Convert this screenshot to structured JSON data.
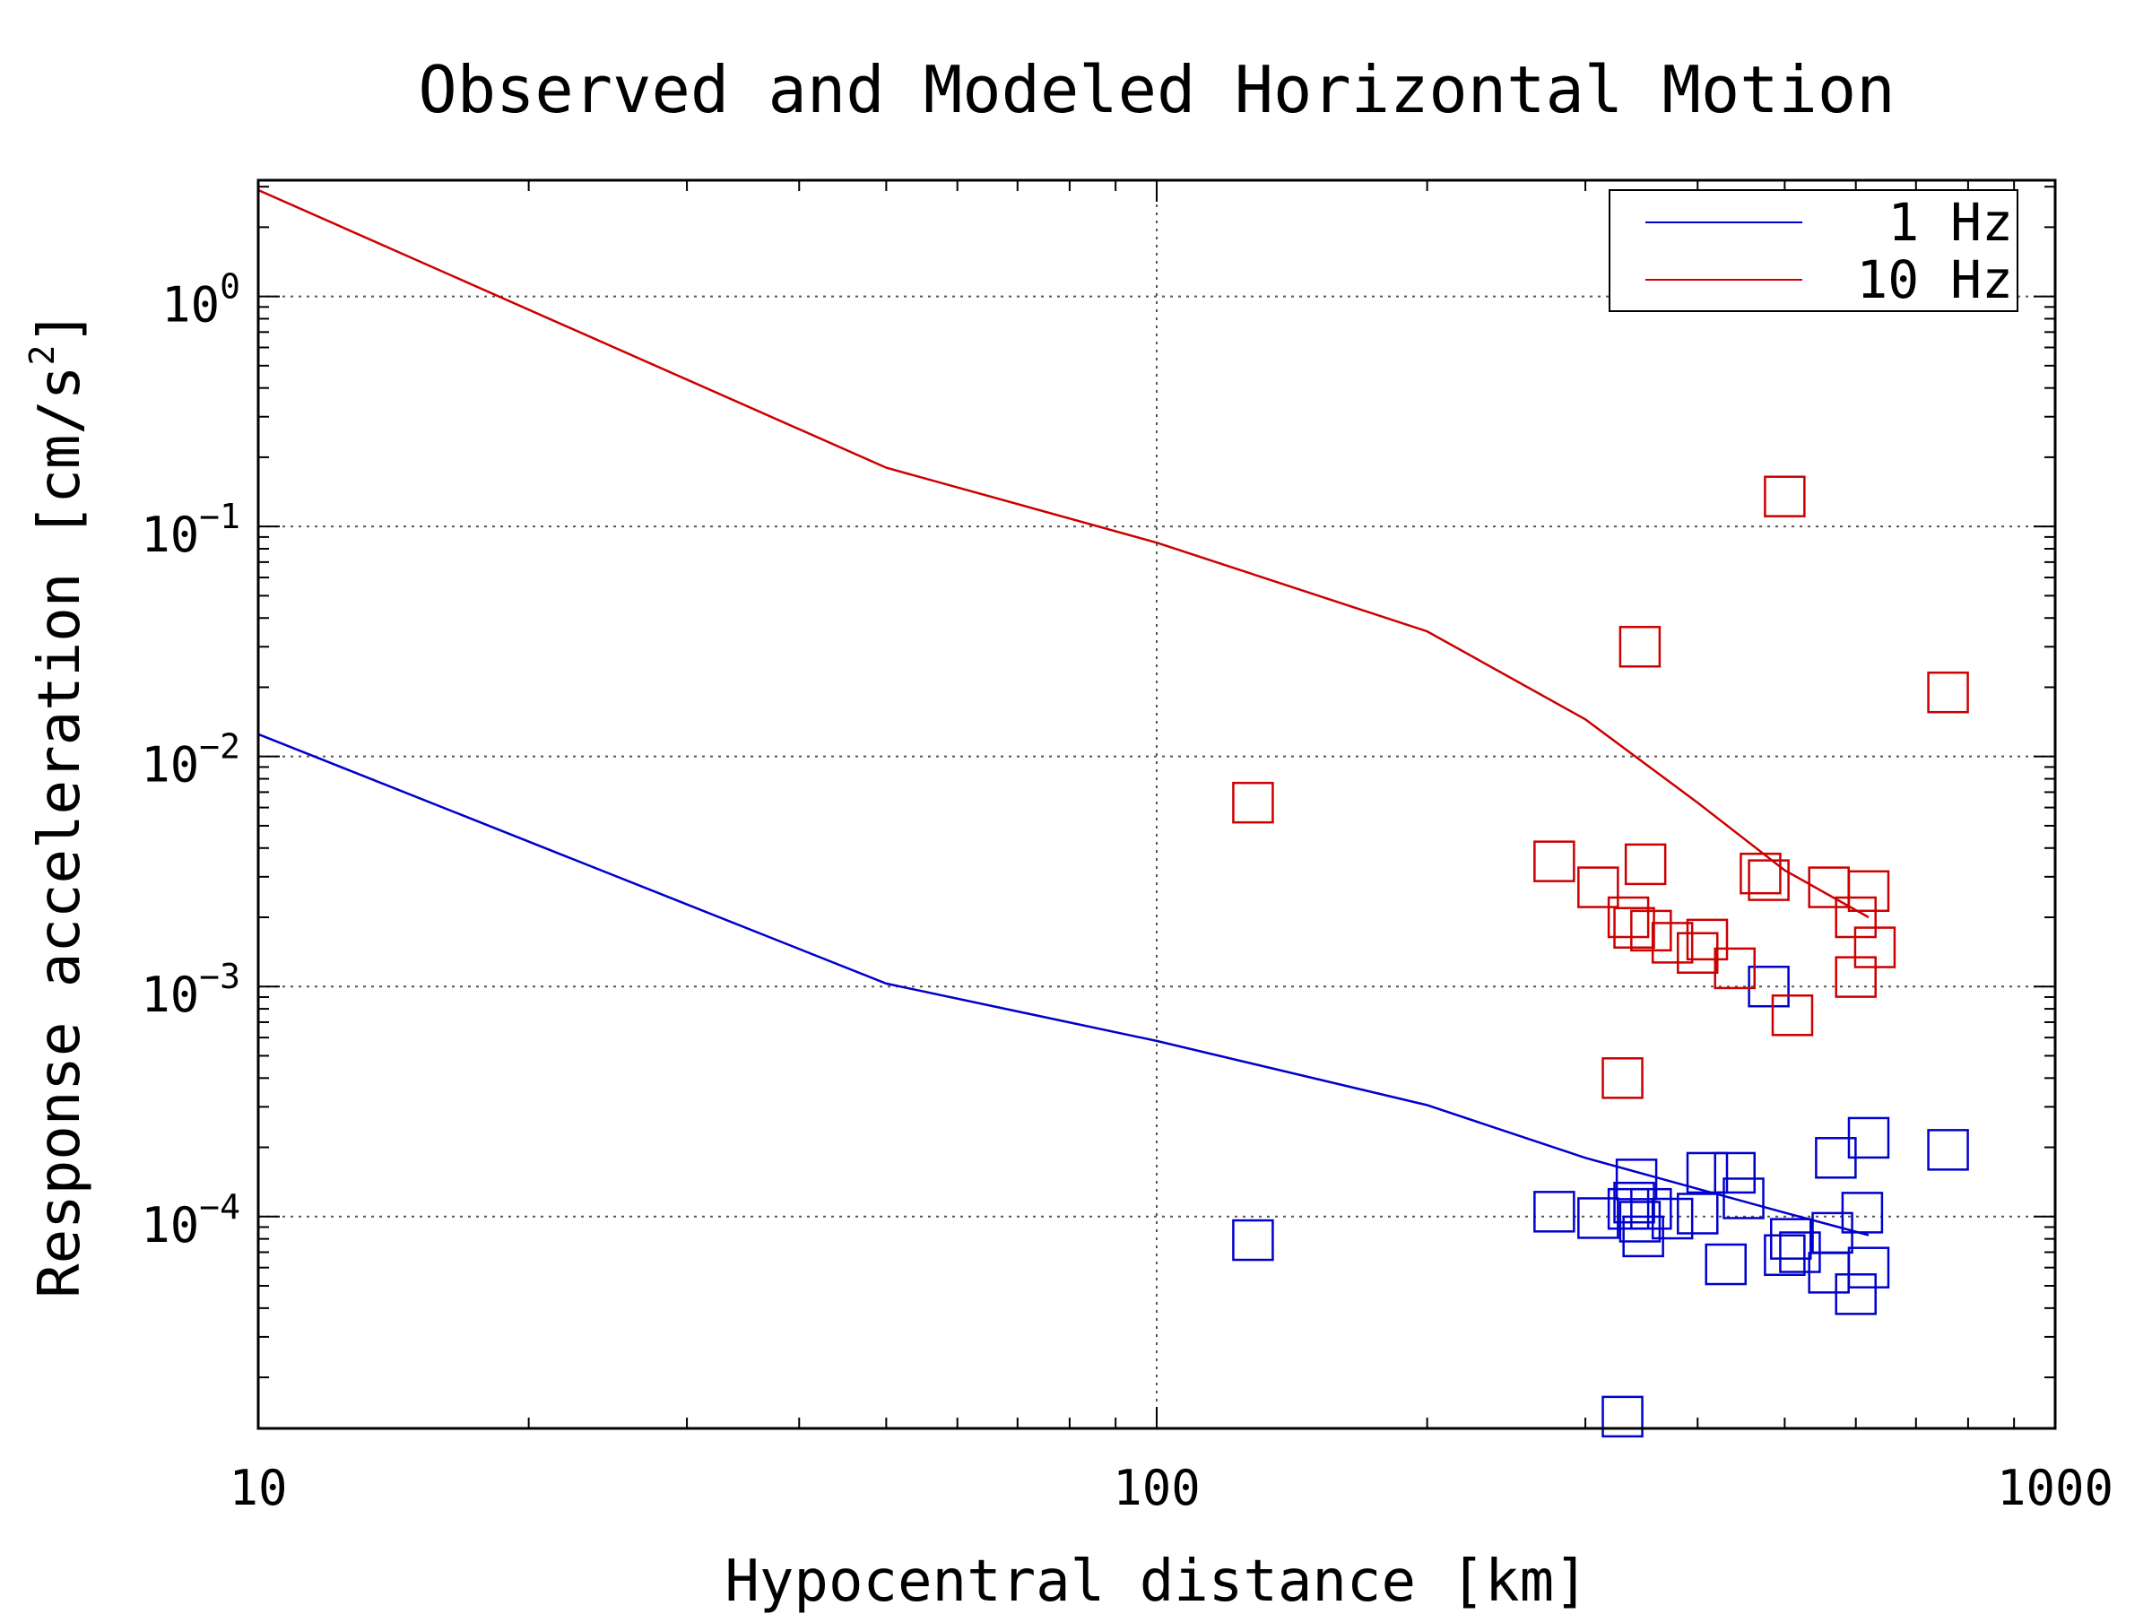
{
  "chart_data": {
    "type": "scatter",
    "title": "Observed and Modeled Horizontal Motion",
    "xlabel": "Hypocentral distance [km]",
    "ylabel": "Response acceleration [cm/s",
    "ylabel_sup": "2",
    "ylabel_end": "]",
    "x_scale": "log",
    "y_scale": "log",
    "xlim": [
      10,
      1000
    ],
    "ylim": [
      1.2e-05,
      3.2
    ],
    "grid": true,
    "legend_position": "top-right",
    "x_ticks": [
      {
        "value": 10,
        "label": "10"
      },
      {
        "value": 100,
        "label": "100"
      },
      {
        "value": 1000,
        "label": "1000"
      }
    ],
    "y_ticks": [
      {
        "value": 1,
        "base": "10",
        "exp": "0"
      },
      {
        "value": 0.1,
        "base": "10",
        "exp": "−1"
      },
      {
        "value": 0.01,
        "base": "10",
        "exp": "−2"
      },
      {
        "value": 0.001,
        "base": "10",
        "exp": "−3"
      },
      {
        "value": 0.0001,
        "base": "10",
        "exp": "−4"
      }
    ],
    "series": [
      {
        "name": "1 Hz",
        "color": "#0000cc",
        "line": {
          "x": [
            10,
            50,
            100,
            200,
            300,
            400,
            500,
            620
          ],
          "y": [
            0.0125,
            0.00103,
            0.00058,
            0.000305,
            0.00018,
            0.000132,
            0.000104,
            8.3e-05
          ]
        },
        "points": {
          "x": [
            128,
            277,
            310,
            330,
            335,
            340,
            342,
            345,
            348,
            355,
            375,
            400,
            410,
            430,
            440,
            450,
            480,
            500,
            508,
            520,
            560,
            565,
            570,
            600,
            610,
            620,
            620,
            760
          ],
          "y": [
            7.9e-05,
            0.000105,
            9.85e-05,
            1.35e-05,
            0.000108,
            0.000115,
            0.000145,
            9.5e-05,
            8.2e-05,
            0.000108,
            9.8e-05,
            0.000103,
            0.000155,
            6.2e-05,
            0.000155,
            0.00012,
            0.001,
            6.8e-05,
            8e-05,
            7e-05,
            5.7e-05,
            8.5e-05,
            0.00018,
            4.6e-05,
            0.000104,
            6e-05,
            0.00022,
            0.000195
          ]
        }
      },
      {
        "name": "10 Hz",
        "color": "#cc0000",
        "line": {
          "x": [
            10,
            50,
            100,
            200,
            300,
            400,
            500,
            620
          ],
          "y": [
            2.9,
            0.18,
            0.085,
            0.035,
            0.0145,
            0.0063,
            0.0032,
            0.002
          ]
        },
        "points": {
          "x": [
            128,
            277,
            310,
            330,
            335,
            340,
            345,
            350,
            355,
            375,
            400,
            410,
            440,
            470,
            480,
            500,
            510,
            560,
            600,
            600,
            620,
            630,
            760
          ],
          "y": [
            0.0063,
            0.0035,
            0.0027,
            0.0004,
            0.002,
            0.0018,
            0.03,
            0.0034,
            0.00175,
            0.00155,
            0.0014,
            0.0016,
            0.0012,
            0.0031,
            0.0029,
            0.135,
            0.00075,
            0.0027,
            0.002,
            0.0011,
            0.0026,
            0.00148,
            0.019
          ]
        }
      }
    ]
  }
}
